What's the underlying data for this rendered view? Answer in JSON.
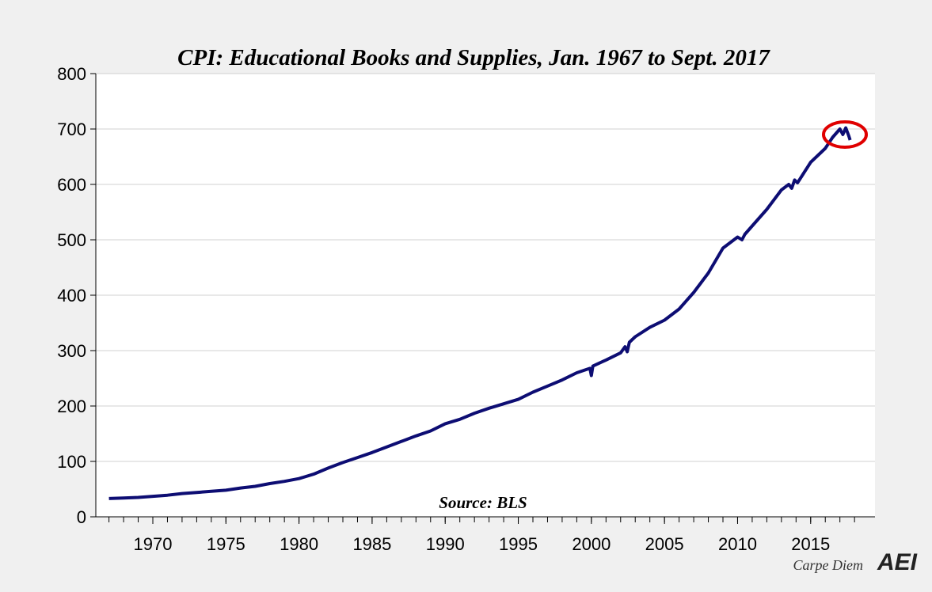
{
  "chart_data": {
    "type": "line",
    "title": "CPI: Educational Books and Supplies, Jan. 1967 to Sept. 2017",
    "source": "Source: BLS",
    "caption": "Carpe Diem",
    "logo": "AEI",
    "x": [
      1967,
      1968,
      1969,
      1970,
      1971,
      1972,
      1973,
      1974,
      1975,
      1976,
      1977,
      1978,
      1979,
      1980,
      1981,
      1982,
      1983,
      1984,
      1985,
      1986,
      1987,
      1988,
      1989,
      1990,
      1991,
      1992,
      1993,
      1994,
      1995,
      1996,
      1997,
      1998,
      1999,
      1999.9,
      2000.0,
      2000.1,
      2001,
      2002,
      2002.3,
      2002.45,
      2002.6,
      2003,
      2004,
      2005,
      2006,
      2007,
      2008,
      2009,
      2010,
      2010.3,
      2010.5,
      2011,
      2012,
      2013,
      2013.5,
      2013.7,
      2013.9,
      2014.1,
      2015,
      2016,
      2016.5,
      2017.0,
      2017.2,
      2017.4,
      2017.6,
      2017.7
    ],
    "series": [
      {
        "name": "CPI: Educational Books and Supplies",
        "color": "#0d0d73",
        "values": [
          33,
          34,
          35,
          37,
          39,
          42,
          44,
          46,
          48,
          52,
          55,
          60,
          64,
          69,
          77,
          88,
          98,
          107,
          116,
          126,
          136,
          146,
          155,
          168,
          176,
          187,
          196,
          204,
          212,
          225,
          236,
          247,
          260,
          268,
          255,
          272,
          283,
          296,
          307,
          298,
          315,
          325,
          342,
          355,
          375,
          405,
          440,
          485,
          505,
          500,
          510,
          525,
          555,
          590,
          600,
          593,
          608,
          603,
          640,
          665,
          685,
          700,
          690,
          702,
          688,
          680
        ]
      }
    ],
    "xlim": [
      1966.1,
      2019.4
    ],
    "xticks": [
      1970,
      1975,
      1980,
      1985,
      1990,
      1995,
      2000,
      2005,
      2010,
      2015
    ],
    "xminorticks": [
      1967,
      1968,
      1969,
      1970,
      1971,
      1972,
      1973,
      1974,
      1975,
      1976,
      1977,
      1978,
      1979,
      1980,
      1981,
      1982,
      1983,
      1984,
      1985,
      1986,
      1987,
      1988,
      1989,
      1990,
      1991,
      1992,
      1993,
      1994,
      1995,
      1996,
      1997,
      1998,
      1999,
      2000,
      2001,
      2002,
      2003,
      2004,
      2005,
      2006,
      2007,
      2008,
      2009,
      2010,
      2011,
      2012,
      2013,
      2014,
      2015,
      2016,
      2017,
      2018
    ],
    "ylim": [
      0,
      800
    ],
    "yticks": [
      0,
      100,
      200,
      300,
      400,
      500,
      600,
      700,
      800
    ],
    "grid": true
  }
}
